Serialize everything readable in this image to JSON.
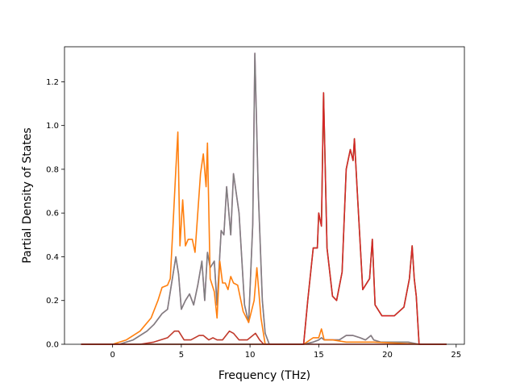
{
  "chart_data": {
    "type": "line",
    "title": "",
    "xlabel": "Frequency (THz)",
    "ylabel": "Partial Density of States",
    "xlim": [
      -3.5,
      25.6
    ],
    "ylim": [
      0,
      1.36
    ],
    "xticks": [
      0,
      5,
      10,
      15,
      20,
      25
    ],
    "yticks": [
      0.0,
      0.2,
      0.4,
      0.6,
      0.8,
      1.0,
      1.2
    ],
    "xtick_labels": [
      "0",
      "5",
      "10",
      "15",
      "20",
      "25"
    ],
    "ytick_labels": [
      "0.0",
      "0.2",
      "0.4",
      "0.6",
      "0.8",
      "1.0",
      "1.2"
    ],
    "grid": false,
    "legend": false,
    "series": [
      {
        "color": "#2ca02c",
        "x": [
          -2.3,
          13.9,
          14.2,
          14.6,
          14.9,
          15.0,
          15.2,
          15.35,
          15.6,
          16.0,
          16.3,
          16.7,
          17.0,
          17.3,
          17.5,
          17.6,
          17.8,
          18.2,
          18.7,
          18.9,
          19.1,
          19.6,
          20.5,
          21.2,
          21.6,
          21.8,
          21.95,
          22.1,
          22.3,
          24.3
        ],
        "y": [
          0.0,
          0.0,
          0.2,
          0.44,
          0.44,
          0.6,
          0.54,
          1.15,
          0.44,
          0.22,
          0.2,
          0.33,
          0.8,
          0.89,
          0.84,
          0.94,
          0.7,
          0.25,
          0.3,
          0.48,
          0.18,
          0.13,
          0.13,
          0.17,
          0.3,
          0.45,
          0.3,
          0.22,
          0.0,
          0.0
        ]
      },
      {
        "color": "#e377c2",
        "x": [
          -2.3,
          0.5,
          1.5,
          2.5,
          3.0,
          3.6,
          4.0,
          4.3,
          4.6,
          4.8,
          5.0,
          5.3,
          5.6,
          5.9,
          6.2,
          6.5,
          6.7,
          6.9,
          7.1,
          7.4,
          7.6,
          7.9,
          8.1,
          8.3,
          8.6,
          8.8,
          9.2,
          9.6,
          9.9,
          10.2,
          10.35,
          10.6,
          10.9,
          11.1,
          11.4,
          13.9,
          14.6,
          15.0,
          15.2,
          15.4,
          16.0,
          16.5,
          17.0,
          17.5,
          18.0,
          18.4,
          18.8,
          19.0,
          19.5,
          21.5,
          22.3,
          24.3
        ],
        "y": [
          0.0,
          0.0,
          0.02,
          0.06,
          0.09,
          0.14,
          0.16,
          0.28,
          0.4,
          0.32,
          0.16,
          0.2,
          0.23,
          0.18,
          0.27,
          0.38,
          0.2,
          0.42,
          0.35,
          0.38,
          0.18,
          0.52,
          0.5,
          0.72,
          0.5,
          0.78,
          0.6,
          0.18,
          0.1,
          0.55,
          1.33,
          0.7,
          0.2,
          0.05,
          0.0,
          0.0,
          0.01,
          0.02,
          0.03,
          0.02,
          0.02,
          0.02,
          0.04,
          0.04,
          0.03,
          0.02,
          0.04,
          0.02,
          0.01,
          0.01,
          0.0,
          0.0
        ]
      },
      {
        "color": "#7f7f7f",
        "x": [
          -2.3,
          0.5,
          1.5,
          2.5,
          3.0,
          3.6,
          4.0,
          4.3,
          4.6,
          4.8,
          5.0,
          5.3,
          5.6,
          5.9,
          6.2,
          6.5,
          6.7,
          6.9,
          7.1,
          7.4,
          7.6,
          7.9,
          8.1,
          8.3,
          8.6,
          8.8,
          9.2,
          9.6,
          9.9,
          10.2,
          10.35,
          10.6,
          10.9,
          11.1,
          11.4,
          13.9,
          14.6,
          15.0,
          15.2,
          15.4,
          16.0,
          16.5,
          17.0,
          17.5,
          18.0,
          18.4,
          18.8,
          19.0,
          19.5,
          21.5,
          22.3,
          24.3
        ],
        "y": [
          0.0,
          0.0,
          0.02,
          0.06,
          0.09,
          0.14,
          0.16,
          0.28,
          0.4,
          0.32,
          0.16,
          0.2,
          0.23,
          0.18,
          0.27,
          0.38,
          0.2,
          0.42,
          0.35,
          0.38,
          0.18,
          0.52,
          0.5,
          0.72,
          0.5,
          0.78,
          0.6,
          0.18,
          0.1,
          0.55,
          1.33,
          0.7,
          0.2,
          0.05,
          0.0,
          0.0,
          0.01,
          0.02,
          0.03,
          0.02,
          0.02,
          0.02,
          0.04,
          0.04,
          0.03,
          0.02,
          0.04,
          0.02,
          0.01,
          0.01,
          0.0,
          0.0
        ]
      },
      {
        "color": "#ff7f0e",
        "x": [
          -2.3,
          0.0,
          1.0,
          2.0,
          2.8,
          3.3,
          3.6,
          4.0,
          4.2,
          4.4,
          4.6,
          4.75,
          4.9,
          5.1,
          5.3,
          5.5,
          5.8,
          6.0,
          6.2,
          6.4,
          6.6,
          6.8,
          6.9,
          7.1,
          7.4,
          7.6,
          7.8,
          8.0,
          8.2,
          8.4,
          8.6,
          8.8,
          9.1,
          9.5,
          9.9,
          10.3,
          10.5,
          10.8,
          11.1,
          13.9,
          14.6,
          15.0,
          15.2,
          15.4,
          16.0,
          17.0,
          18.0,
          19.0,
          22.3,
          24.3
        ],
        "y": [
          0.0,
          0.0,
          0.02,
          0.06,
          0.12,
          0.2,
          0.26,
          0.27,
          0.3,
          0.55,
          0.8,
          0.97,
          0.45,
          0.66,
          0.45,
          0.48,
          0.48,
          0.42,
          0.6,
          0.78,
          0.87,
          0.72,
          0.92,
          0.3,
          0.24,
          0.12,
          0.38,
          0.28,
          0.28,
          0.25,
          0.31,
          0.28,
          0.27,
          0.15,
          0.1,
          0.2,
          0.35,
          0.12,
          0.0,
          0.0,
          0.03,
          0.03,
          0.07,
          0.02,
          0.02,
          0.01,
          0.01,
          0.01,
          0.0,
          0.0
        ]
      },
      {
        "color": "#d62728",
        "x": [
          -2.3,
          13.9,
          14.2,
          14.6,
          14.9,
          15.0,
          15.2,
          15.35,
          15.6,
          16.0,
          16.3,
          16.7,
          17.0,
          17.3,
          17.5,
          17.6,
          17.8,
          18.2,
          18.7,
          18.9,
          19.1,
          19.6,
          20.5,
          21.2,
          21.6,
          21.8,
          21.95,
          22.1,
          22.3,
          24.3
        ],
        "y": [
          0.0,
          0.0,
          0.2,
          0.44,
          0.44,
          0.6,
          0.54,
          1.15,
          0.44,
          0.22,
          0.2,
          0.33,
          0.8,
          0.89,
          0.84,
          0.94,
          0.7,
          0.25,
          0.3,
          0.48,
          0.18,
          0.13,
          0.13,
          0.17,
          0.3,
          0.45,
          0.3,
          0.22,
          0.0,
          0.0
        ]
      },
      {
        "color": "#c0392b",
        "x": [
          -2.3,
          2.0,
          3.0,
          4.0,
          4.5,
          4.8,
          5.2,
          5.7,
          6.3,
          6.6,
          7.0,
          7.3,
          7.6,
          8.0,
          8.5,
          8.8,
          9.2,
          9.8,
          10.4,
          10.7,
          11.0,
          24.3
        ],
        "y": [
          0.0,
          0.0,
          0.01,
          0.03,
          0.06,
          0.06,
          0.02,
          0.02,
          0.04,
          0.04,
          0.02,
          0.03,
          0.02,
          0.02,
          0.06,
          0.05,
          0.02,
          0.02,
          0.05,
          0.02,
          0.0,
          0.0
        ]
      }
    ]
  }
}
